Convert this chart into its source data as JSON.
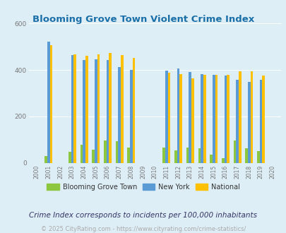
{
  "title": "Blooming Grove Town Violent Crime Index",
  "subtitle": "Crime Index corresponds to incidents per 100,000 inhabitants",
  "footer": "© 2025 CityRating.com - https://www.cityrating.com/crime-statistics/",
  "years": [
    2000,
    2001,
    2002,
    2003,
    2004,
    2005,
    2006,
    2007,
    2008,
    2009,
    2010,
    2011,
    2012,
    2013,
    2014,
    2015,
    2016,
    2017,
    2018,
    2019,
    2020
  ],
  "blooming_grove": [
    0,
    30,
    0,
    48,
    78,
    57,
    98,
    95,
    68,
    0,
    0,
    68,
    55,
    68,
    65,
    35,
    22,
    98,
    65,
    52,
    0
  ],
  "new_york": [
    0,
    520,
    0,
    465,
    443,
    445,
    443,
    412,
    400,
    0,
    0,
    398,
    407,
    390,
    382,
    380,
    375,
    357,
    350,
    358,
    0
  ],
  "national": [
    0,
    506,
    0,
    468,
    460,
    468,
    472,
    463,
    452,
    0,
    0,
    387,
    383,
    363,
    378,
    378,
    378,
    395,
    394,
    376,
    0
  ],
  "blooming_grove_color": "#8dc63f",
  "new_york_color": "#5b9bd5",
  "national_color": "#ffc000",
  "fig_bg_color": "#deeef6",
  "plot_bg_color": "#ddeef6",
  "legend_bg_color": "#ffffff",
  "ylim": [
    0,
    600
  ],
  "yticks": [
    0,
    200,
    400,
    600
  ],
  "bar_width": 0.22,
  "legend_labels": [
    "Blooming Grove Town",
    "New York",
    "National"
  ],
  "title_color": "#1a6fa8",
  "tick_color": "#777777",
  "subtitle_color": "#333366",
  "footer_color": "#aaaaaa"
}
